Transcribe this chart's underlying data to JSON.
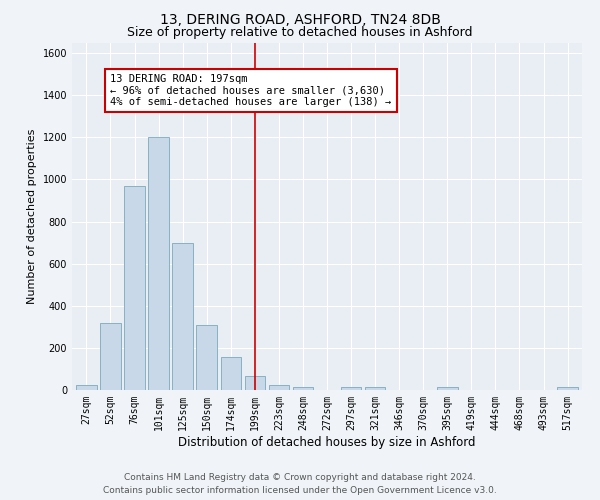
{
  "title1": "13, DERING ROAD, ASHFORD, TN24 8DB",
  "title2": "Size of property relative to detached houses in Ashford",
  "xlabel": "Distribution of detached houses by size in Ashford",
  "ylabel": "Number of detached properties",
  "categories": [
    "27sqm",
    "52sqm",
    "76sqm",
    "101sqm",
    "125sqm",
    "150sqm",
    "174sqm",
    "199sqm",
    "223sqm",
    "248sqm",
    "272sqm",
    "297sqm",
    "321sqm",
    "346sqm",
    "370sqm",
    "395sqm",
    "419sqm",
    "444sqm",
    "468sqm",
    "493sqm",
    "517sqm"
  ],
  "values": [
    25,
    320,
    970,
    1200,
    700,
    310,
    155,
    65,
    25,
    15,
    0,
    15,
    15,
    0,
    0,
    15,
    0,
    0,
    0,
    0,
    15
  ],
  "bar_color": "#c8d8e8",
  "bar_edge_color": "#7aaabb",
  "vline_x": 7,
  "vline_color": "#cc0000",
  "annotation_text": "13 DERING ROAD: 197sqm\n← 96% of detached houses are smaller (3,630)\n4% of semi-detached houses are larger (138) →",
  "annotation_box_color": "#ffffff",
  "annotation_box_edge": "#cc0000",
  "ylim": [
    0,
    1650
  ],
  "yticks": [
    0,
    200,
    400,
    600,
    800,
    1000,
    1200,
    1400,
    1600
  ],
  "footer1": "Contains HM Land Registry data © Crown copyright and database right 2024.",
  "footer2": "Contains public sector information licensed under the Open Government Licence v3.0.",
  "bg_color": "#f0f4f8",
  "plot_bg_color": "#e8eef4",
  "grid_color": "#ffffff",
  "title1_fontsize": 10,
  "title2_fontsize": 9,
  "xlabel_fontsize": 8.5,
  "ylabel_fontsize": 8,
  "tick_fontsize": 7,
  "annotation_fontsize": 7.5,
  "footer_fontsize": 6.5
}
